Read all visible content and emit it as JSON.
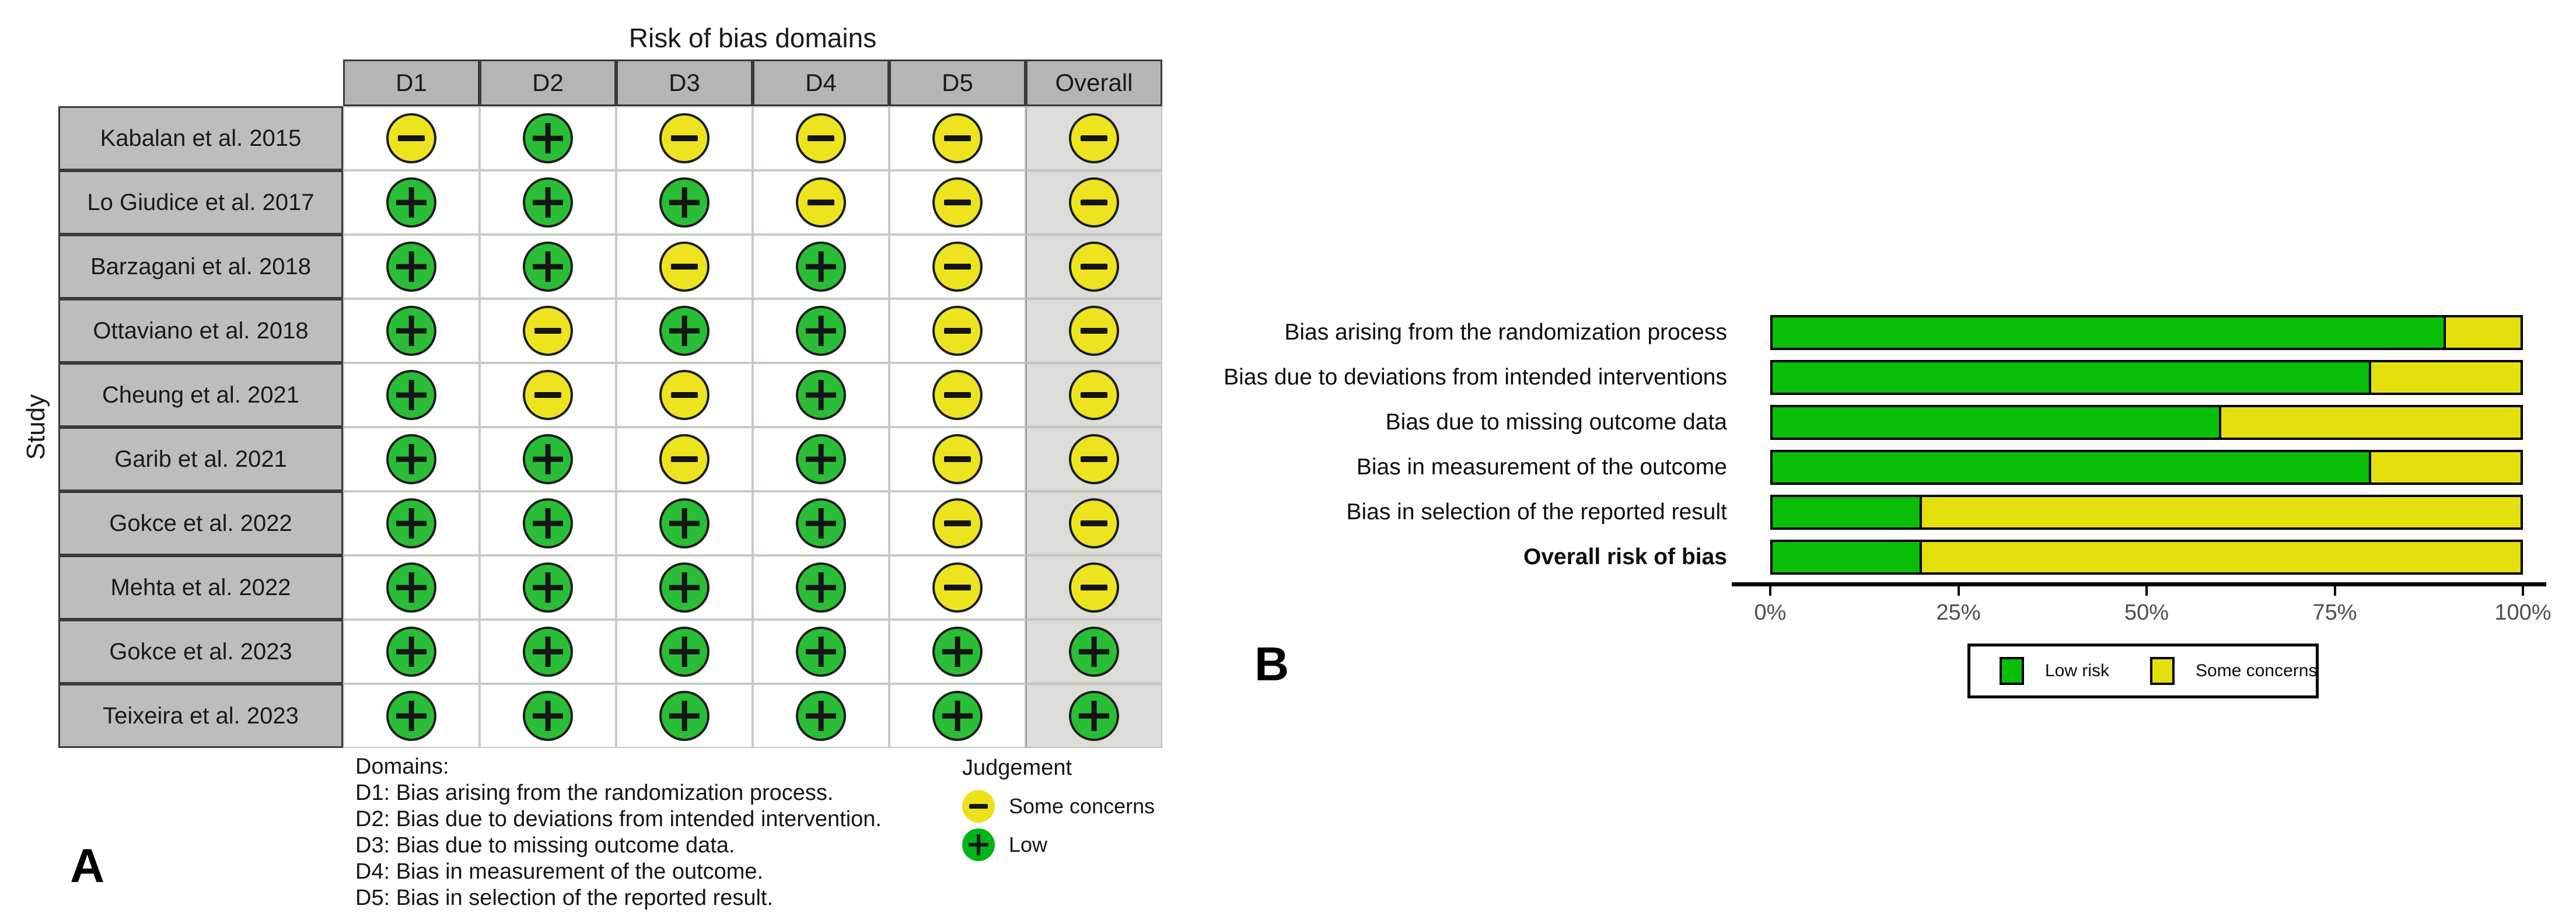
{
  "panel_a": {
    "label": "A",
    "title": "Risk of bias domains",
    "axis_label": "Study",
    "columns": [
      "D1",
      "D2",
      "D3",
      "D4",
      "D5",
      "Overall"
    ],
    "footnote_lines": [
      "Domains:",
      "D1: Bias arising from the randomization process.",
      "D2: Bias due to deviations from intended intervention.",
      "D3: Bias due to missing outcome data.",
      "D4: Bias in measurement of the outcome.",
      "D5: Bias in selection of the reported result."
    ],
    "legend": {
      "title": "Judgement",
      "items": [
        {
          "key": "some_concerns",
          "label": "Some concerns"
        },
        {
          "key": "low",
          "label": "Low"
        }
      ]
    }
  },
  "panel_b": {
    "label": "B"
  },
  "colors": {
    "low_circle": "#2ABE37",
    "some_concerns_circle": "#EDE41F",
    "low_flat": "#00B517",
    "some_flat": "#EDE11C",
    "low_bar": "#0ABF0A",
    "some_concerns_bar": "#E6DF0E",
    "header_bg": "#B5B5B5",
    "study_bg": "#BDBDBD",
    "overall_bg": "#DCDCD8",
    "table_border_dark": "#3A3A3A",
    "body_grid": "#C3CEC3",
    "axis_text": "#4E4E4E"
  },
  "chart_data": [
    {
      "type": "table",
      "title": "Risk of bias domains",
      "columns": [
        "Study",
        "D1",
        "D2",
        "D3",
        "D4",
        "D5",
        "Overall"
      ],
      "rows": [
        {
          "study": "Kabalan et al. 2015",
          "judgements": [
            "some_concerns",
            "low",
            "some_concerns",
            "some_concerns",
            "some_concerns",
            "some_concerns"
          ]
        },
        {
          "study": "Lo Giudice et al. 2017",
          "judgements": [
            "low",
            "low",
            "low",
            "some_concerns",
            "some_concerns",
            "some_concerns"
          ]
        },
        {
          "study": "Barzagani et al. 2018",
          "judgements": [
            "low",
            "low",
            "some_concerns",
            "low",
            "some_concerns",
            "some_concerns"
          ]
        },
        {
          "study": "Ottaviano et al. 2018",
          "judgements": [
            "low",
            "some_concerns",
            "low",
            "low",
            "some_concerns",
            "some_concerns"
          ]
        },
        {
          "study": "Cheung et al. 2021",
          "judgements": [
            "low",
            "some_concerns",
            "some_concerns",
            "low",
            "some_concerns",
            "some_concerns"
          ]
        },
        {
          "study": "Garib et al. 2021",
          "judgements": [
            "low",
            "low",
            "some_concerns",
            "low",
            "some_concerns",
            "some_concerns"
          ]
        },
        {
          "study": "Gokce et al. 2022",
          "judgements": [
            "low",
            "low",
            "low",
            "low",
            "some_concerns",
            "some_concerns"
          ]
        },
        {
          "study": "Mehta et al. 2022",
          "judgements": [
            "low",
            "low",
            "low",
            "low",
            "some_concerns",
            "some_concerns"
          ]
        },
        {
          "study": "Gokce et al. 2023",
          "judgements": [
            "low",
            "low",
            "low",
            "low",
            "low",
            "low"
          ]
        },
        {
          "study": "Teixeira et al. 2023",
          "judgements": [
            "low",
            "low",
            "low",
            "low",
            "low",
            "low"
          ]
        }
      ]
    },
    {
      "type": "bar",
      "stacked": true,
      "orientation": "horizontal",
      "categories": [
        "Bias arising from the randomization process",
        "Bias due to deviations from intended interventions",
        "Bias due to missing outcome data",
        "Bias in measurement of the outcome",
        "Bias in selection of the reported result",
        "Overall risk of bias"
      ],
      "series": [
        {
          "name": "Low risk",
          "values": [
            90,
            80,
            60,
            80,
            20,
            20
          ]
        },
        {
          "name": "Some concerns",
          "values": [
            10,
            20,
            40,
            20,
            80,
            80
          ]
        }
      ],
      "x_ticks": [
        "0%",
        "25%",
        "50%",
        "75%",
        "100%"
      ],
      "xlim": [
        0,
        100
      ],
      "grid": false,
      "legend_position": "bottom"
    }
  ]
}
